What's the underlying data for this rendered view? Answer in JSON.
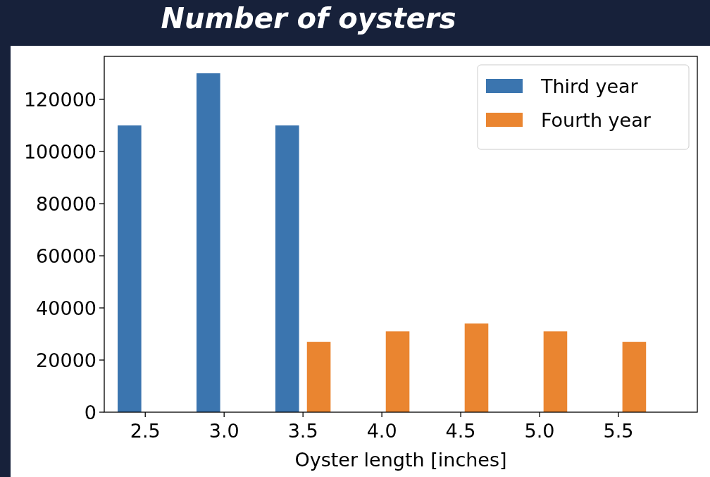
{
  "chart_data": {
    "type": "bar",
    "title": "Number of oysters",
    "xlabel": "Oyster length [inches]",
    "xlim": [
      2.24,
      6.0
    ],
    "xticks": [
      2.5,
      {
        "value": 3.0,
        "label": "3.0"
      },
      3.5,
      {
        "value": 4.0,
        "label": "4.0"
      },
      4.5,
      {
        "value": 5.0,
        "label": "5.0"
      },
      5.5
    ],
    "ylim": [
      0,
      136500
    ],
    "yticks": [
      0,
      20000,
      40000,
      60000,
      80000,
      100000,
      120000
    ],
    "series": [
      {
        "name": "Third year",
        "color": "#3b75af",
        "x": [
          2.4,
          2.9,
          3.4
        ],
        "values": [
          110000,
          130000,
          110000
        ]
      },
      {
        "name": "Fourth year",
        "color": "#ea8530",
        "x": [
          3.6,
          4.1,
          4.6,
          5.1,
          5.6
        ],
        "values": [
          27000,
          31000,
          34000,
          31000,
          27000
        ]
      }
    ],
    "legend": "top right",
    "grid": false
  }
}
